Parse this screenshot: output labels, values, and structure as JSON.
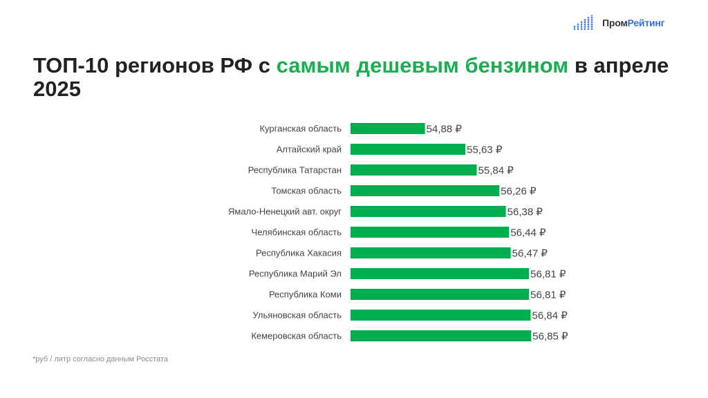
{
  "logo": {
    "part1": "Пром",
    "part2": "Рейтинг",
    "accent": "#2f6fe4"
  },
  "title": {
    "before": "ТОП-10 регионов РФ с ",
    "highlight": "самым дешевым бензином",
    "after": " в апреле 2025"
  },
  "footnote": "*руб / литр согласно данным Росстата",
  "chart_data": {
    "type": "bar",
    "orientation": "horizontal",
    "categories": [
      "Курганская область",
      "Алтайский край",
      "Республика Татарстан",
      "Томская область",
      "Ямало-Ненецкий авт. округ",
      "Челябинская область",
      "Республика Хакасия",
      "Республика Марий Эл",
      "Республика Коми",
      "Ульяновская область",
      "Кемеровская область"
    ],
    "values": [
      54.88,
      55.63,
      55.84,
      56.26,
      56.38,
      56.44,
      56.47,
      56.81,
      56.81,
      56.84,
      56.85
    ],
    "labels": [
      "54,88 ₽",
      "55,63 ₽",
      "55,84 ₽",
      "56,26 ₽",
      "56,38 ₽",
      "56,44 ₽",
      "56,47 ₽",
      "56,81 ₽",
      "56,81 ₽",
      "56,84 ₽",
      "56,85 ₽"
    ],
    "xlim": [
      53.5,
      57.5
    ],
    "grid": false,
    "bar_color": "#00b04f"
  }
}
